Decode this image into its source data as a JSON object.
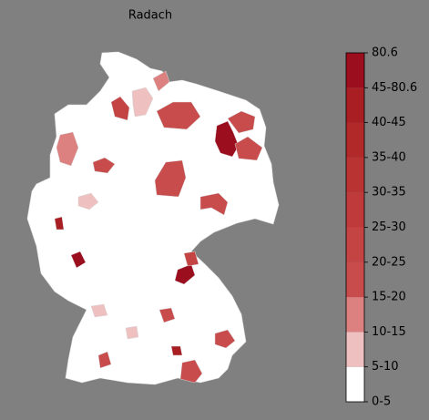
{
  "title": "Radach",
  "colorbar": {
    "labels": [
      "0-5",
      "5-10",
      "10-15",
      "15-20",
      "20-25",
      "25-30",
      "30-35",
      "35-40",
      "40-45",
      "45-80.6",
      "80.6"
    ],
    "colors": [
      "#ffffff",
      "#efc0c0",
      "#dc8080",
      "#c84c4c",
      "#c44343",
      "#bf3b3b",
      "#ba3333",
      "#b22929",
      "#a81e22",
      "#9b0e1e"
    ]
  }
}
